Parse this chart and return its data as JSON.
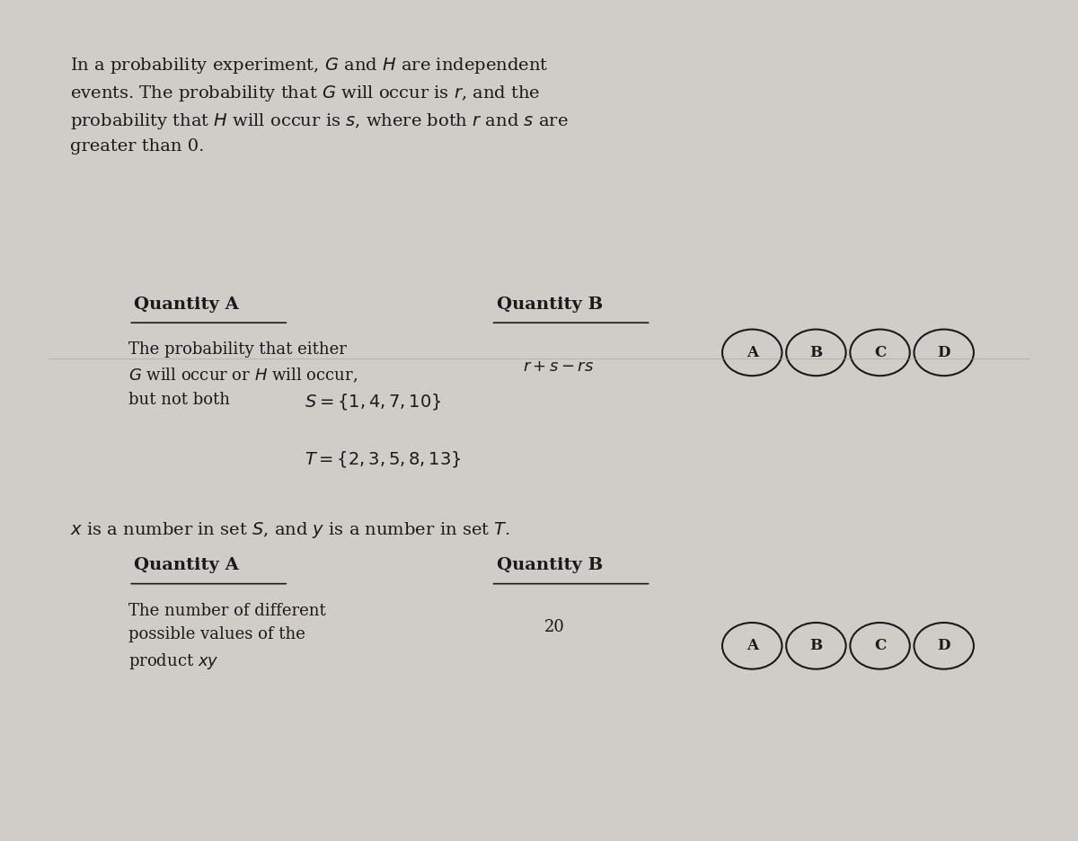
{
  "bg_color": "#d0ccc8",
  "text_color": "#1a1a1a",
  "fig_width": 12.0,
  "fig_height": 9.36,
  "problem1_intro": "In a probability experiment, $G$ and $H$ are independent\nevents. The probability that $G$ will occur is $r$, and the\nprobability that $H$ will occur is $s$, where both $r$ and $s$ are\ngreater than 0.",
  "qty_a_label": "Quantity A",
  "qty_b_label": "Quantity B",
  "p1_qty_a_text": "The probability that either\n$G$ will occur or $H$ will occur,\nbut not both",
  "p1_qty_b_text": "$r + s - rs$",
  "problem2_sets_line1": "$S = \\{1, 4, 7, 10\\}$",
  "problem2_sets_line2": "$T = \\{2, 3, 5, 8, 13\\}$",
  "problem2_desc": "$x$ is a number in set $S$, and $y$ is a number in set $T$.",
  "p2_qty_a_text": "The number of different\npossible values of the\nproduct $xy$",
  "p2_qty_b_text": "20",
  "choices": [
    "A",
    "B",
    "C",
    "D"
  ]
}
